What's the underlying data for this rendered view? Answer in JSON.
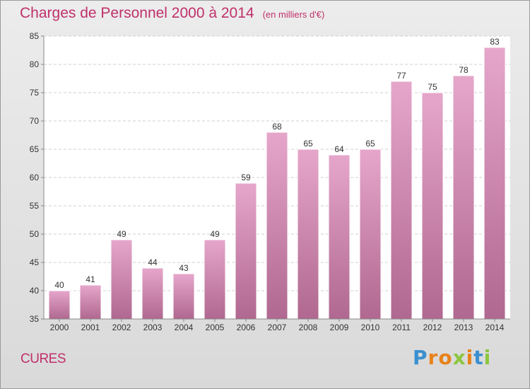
{
  "chart_data": {
    "type": "bar",
    "title": "Charges de Personnel 2000 à 2014",
    "subtitle": "(en milliers d'€)",
    "categories": [
      "2000",
      "2001",
      "2002",
      "2003",
      "2004",
      "2005",
      "2006",
      "2007",
      "2008",
      "2009",
      "2010",
      "2011",
      "2012",
      "2013",
      "2014"
    ],
    "values": [
      40,
      41,
      49,
      44,
      43,
      49,
      59,
      68,
      65,
      64,
      65,
      77,
      75,
      78,
      83
    ],
    "ylim": [
      35,
      85
    ],
    "yticks": [
      35,
      40,
      45,
      50,
      55,
      60,
      65,
      70,
      75,
      80,
      85
    ],
    "grid": true,
    "data_labels": true,
    "colors": {
      "bar_top": "#e6a6cb",
      "bar_bottom": "#b06890",
      "text": "#c0306a"
    }
  },
  "footer": {
    "place": "CURES",
    "logo": {
      "letters": [
        "P",
        "r",
        "o",
        "x",
        "i",
        "t",
        "i"
      ],
      "colors": [
        "#3a8fd0",
        "#e8821a",
        "#e8821a",
        "#8cc63f",
        "#e8821a",
        "#3a8fd0",
        "#8cc63f"
      ]
    }
  }
}
